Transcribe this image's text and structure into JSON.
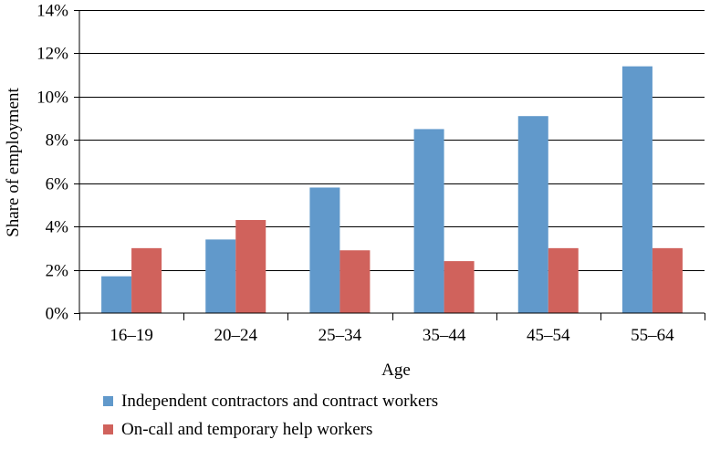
{
  "chart_data": {
    "type": "bar",
    "categories": [
      "16–19",
      "20–24",
      "25–34",
      "35–44",
      "45–54",
      "55–64"
    ],
    "series": [
      {
        "name": "Independent contractors and contract workers",
        "values": [
          1.7,
          3.4,
          5.8,
          8.5,
          9.1,
          11.4
        ],
        "color": "#6199cb"
      },
      {
        "name": "On-call and temporary help workers",
        "values": [
          3.0,
          4.3,
          2.9,
          2.4,
          3.0,
          3.0
        ],
        "color": "#d0625c"
      }
    ],
    "xlabel": "Age",
    "ylabel": "Share of employment",
    "ylim": [
      0,
      14
    ],
    "yticks": [
      "0%",
      "2%",
      "4%",
      "6%",
      "8%",
      "10%",
      "12%",
      "14%"
    ],
    "y_tick_values": [
      0,
      2,
      4,
      6,
      8,
      10,
      12,
      14
    ],
    "grid": true,
    "legend_position": "bottom"
  }
}
